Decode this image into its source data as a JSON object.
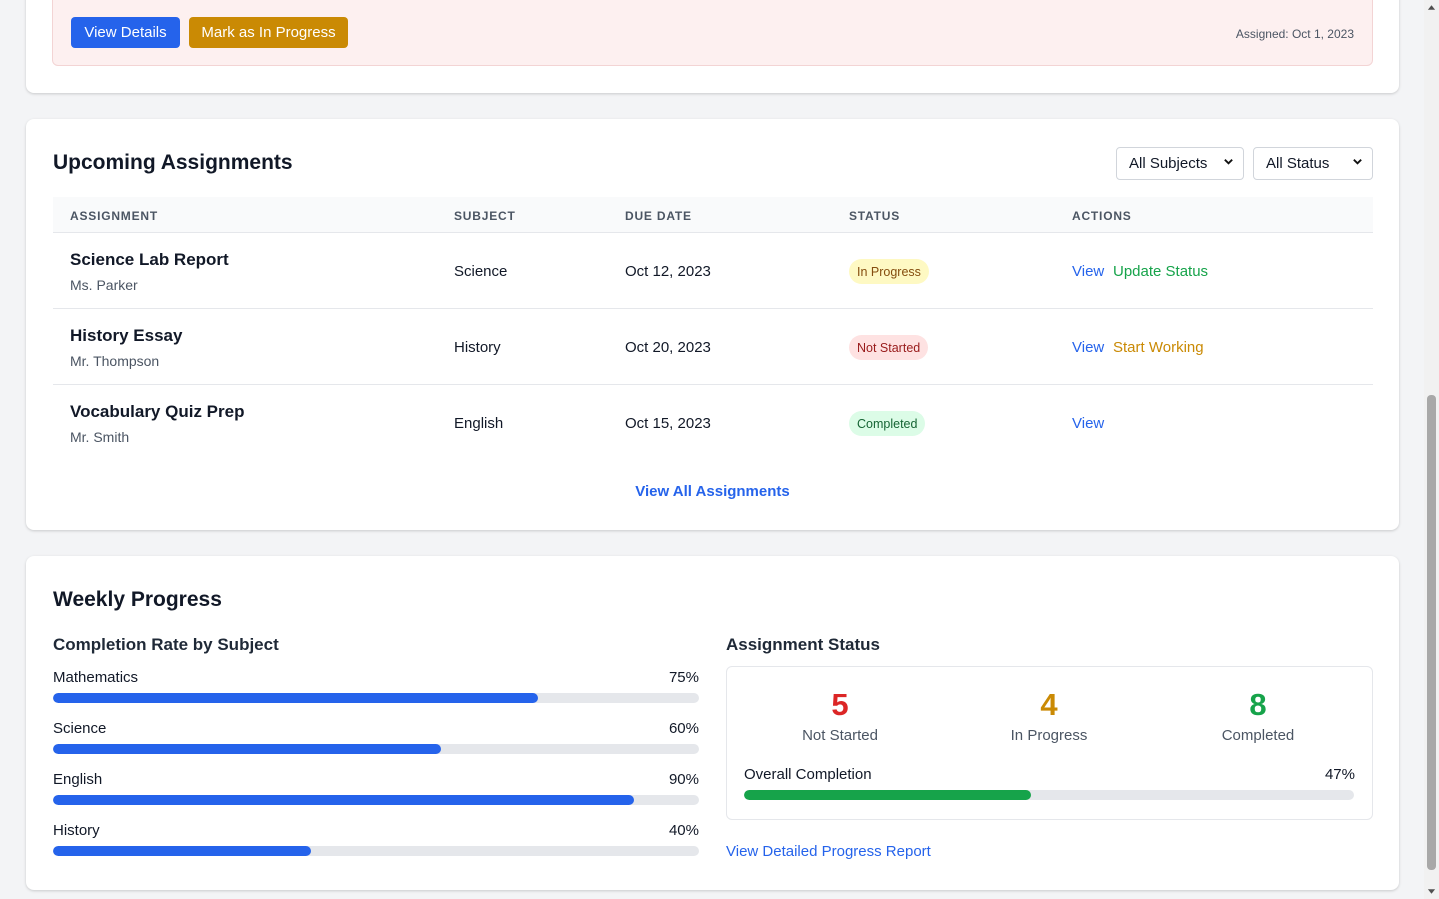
{
  "top_card": {
    "view_details_label": "View Details",
    "mark_in_progress_label": "Mark as In Progress",
    "assigned_text": "Assigned: Oct 1, 2023"
  },
  "upcoming": {
    "title": "Upcoming Assignments",
    "subject_filter": "All Subjects",
    "status_filter": "All Status",
    "columns": [
      "ASSIGNMENT",
      "SUBJECT",
      "DUE DATE",
      "STATUS",
      "ACTIONS"
    ],
    "rows": [
      {
        "title": "Science Lab Report",
        "teacher": "Ms. Parker",
        "subject": "Science",
        "due": "Oct 12, 2023",
        "status": "In Progress",
        "view": "View",
        "action": "Update Status"
      },
      {
        "title": "History Essay",
        "teacher": "Mr. Thompson",
        "subject": "History",
        "due": "Oct 20, 2023",
        "status": "Not Started",
        "view": "View",
        "action": "Start Working"
      },
      {
        "title": "Vocabulary Quiz Prep",
        "teacher": "Mr. Smith",
        "subject": "English",
        "due": "Oct 15, 2023",
        "status": "Completed",
        "view": "View",
        "action": ""
      }
    ],
    "view_all_label": "View All Assignments"
  },
  "weekly": {
    "title": "Weekly Progress",
    "completion_title": "Completion Rate by Subject",
    "subjects": [
      {
        "name": "Mathematics",
        "pct_label": "75%",
        "value": 75
      },
      {
        "name": "Science",
        "pct_label": "60%",
        "value": 60
      },
      {
        "name": "English",
        "pct_label": "90%",
        "value": 90
      },
      {
        "name": "History",
        "pct_label": "40%",
        "value": 40
      }
    ],
    "status_title": "Assignment Status",
    "stats": [
      {
        "count": "5",
        "label": "Not Started"
      },
      {
        "count": "4",
        "label": "In Progress"
      },
      {
        "count": "8",
        "label": "Completed"
      }
    ],
    "overall_label": "Overall Completion",
    "overall_pct_label": "47%",
    "overall_value": 47,
    "report_link": "View Detailed Progress Report"
  },
  "colors": {
    "primary": "#2563eb",
    "warning": "#ca8a04",
    "success": "#16a34a",
    "danger": "#dc2626"
  }
}
